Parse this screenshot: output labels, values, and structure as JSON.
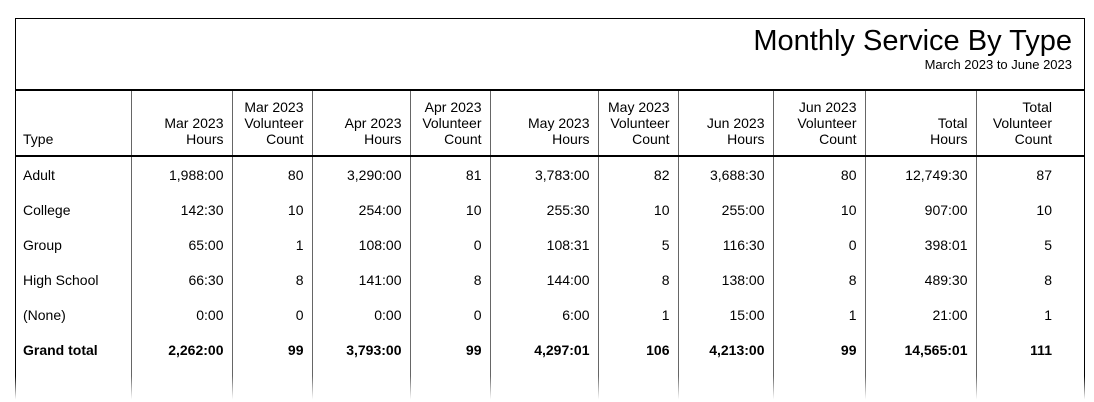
{
  "title": "Monthly Service By Type",
  "subtitle": "March 2023 to June 2023",
  "table": {
    "columns": [
      "Type",
      "Mar 2023\nHours",
      "Mar 2023\nVolunteer\nCount",
      "Apr 2023\nHours",
      "Apr 2023\nVolunteer\nCount",
      "May 2023\nHours",
      "May 2023\nVolunteer\nCount",
      "Jun 2023\nHours",
      "Jun 2023\nVolunteer\nCount",
      "Total\nHours",
      "Total\nVolunteer\nCount"
    ],
    "rows": [
      {
        "type": "Adult",
        "values": [
          "1,988:00",
          "80",
          "3,290:00",
          "81",
          "3,783:00",
          "82",
          "3,688:30",
          "80",
          "12,749:30",
          "87"
        ]
      },
      {
        "type": "College",
        "values": [
          "142:30",
          "10",
          "254:00",
          "10",
          "255:30",
          "10",
          "255:00",
          "10",
          "907:00",
          "10"
        ]
      },
      {
        "type": "Group",
        "values": [
          "65:00",
          "1",
          "108:00",
          "0",
          "108:31",
          "5",
          "116:30",
          "0",
          "398:01",
          "5"
        ]
      },
      {
        "type": "High School",
        "values": [
          "66:30",
          "8",
          "141:00",
          "8",
          "144:00",
          "8",
          "138:00",
          "8",
          "489:30",
          "8"
        ]
      },
      {
        "type": "(None)",
        "values": [
          "0:00",
          "0",
          "0:00",
          "0",
          "6:00",
          "1",
          "15:00",
          "1",
          "21:00",
          "1"
        ]
      }
    ],
    "grand_total": {
      "type": "Grand total",
      "values": [
        "2,262:00",
        "99",
        "3,793:00",
        "99",
        "4,297:01",
        "106",
        "4,213:00",
        "99",
        "14,565:01",
        "111"
      ]
    }
  },
  "colors": {
    "border_outer": "#000000",
    "border_grid": "#666666",
    "text": "#000000",
    "background": "#ffffff"
  }
}
